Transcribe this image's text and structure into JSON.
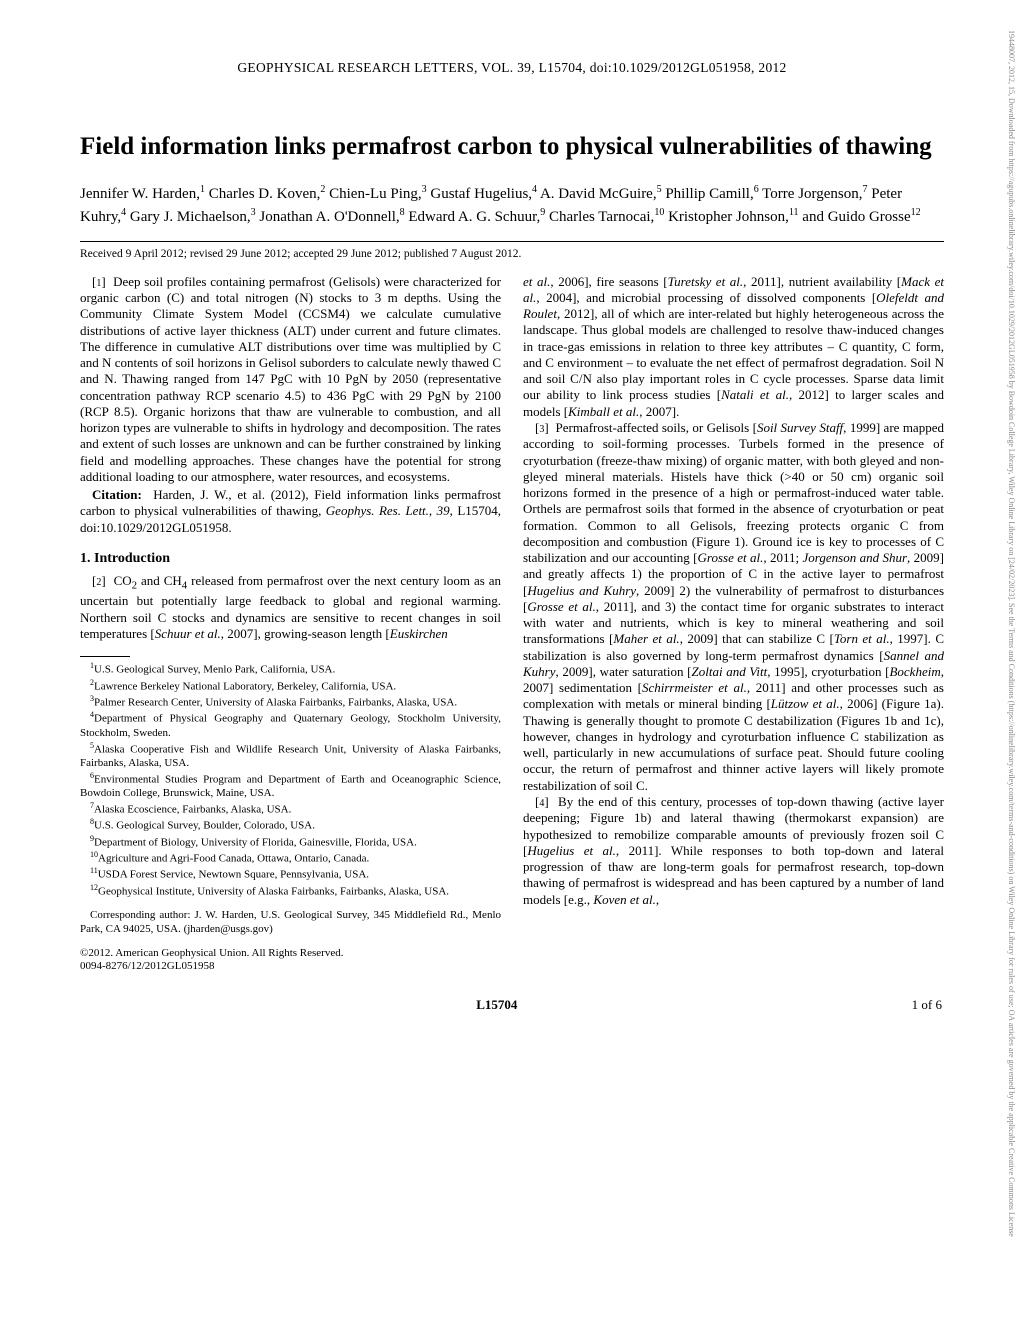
{
  "sidebar_text": "19448007, 2012, 15, Downloaded from https://agupubs.onlinelibrary.wiley.com/doi/10.1029/2012GL051958 by Bowdoin College Library, Wiley Online Library on [24/02/2023]. See the Terms and Conditions (https://onlinelibrary.wiley.com/terms-and-conditions) on Wiley Online Library for rules of use; OA articles are governed by the applicable Creative Commons License",
  "journal_header": "GEOPHYSICAL RESEARCH LETTERS, VOL. 39, L15704, doi:10.1029/2012GL051958, 2012",
  "title": "Field information links permafrost carbon to physical vulnerabilities of thawing",
  "authors_html": "Jennifer W. Harden,<sup>1</sup> Charles D. Koven,<sup>2</sup> Chien-Lu Ping,<sup>3</sup> Gustaf Hugelius,<sup>4</sup> A. David McGuire,<sup>5</sup> Phillip Camill,<sup>6</sup> Torre Jorgenson,<sup>7</sup> Peter Kuhry,<sup>4</sup> Gary J. Michaelson,<sup>3</sup> Jonathan A. O'Donnell,<sup>8</sup> Edward A. G. Schuur,<sup>9</sup> Charles Tarnocai,<sup>10</sup> Kristopher Johnson,<sup>11</sup> and Guido Grosse<sup>12</sup>",
  "dates": "Received 9 April 2012; revised 29 June 2012; accepted 29 June 2012; published 7 August 2012.",
  "abstract": "Deep soil profiles containing permafrost (Gelisols) were characterized for organic carbon (C) and total nitrogen (N) stocks to 3 m depths. Using the Community Climate System Model (CCSM4) we calculate cumulative distributions of active layer thickness (ALT) under current and future climates. The difference in cumulative ALT distributions over time was multiplied by C and N contents of soil horizons in Gelisol suborders to calculate newly thawed C and N. Thawing ranged from 147 PgC with 10 PgN by 2050 (representative concentration pathway RCP scenario 4.5) to 436 PgC with 29 PgN by 2100 (RCP 8.5). Organic horizons that thaw are vulnerable to combustion, and all horizon types are vulnerable to shifts in hydrology and decomposition. The rates and extent of such losses are unknown and can be further constrained by linking field and modelling approaches. These changes have the potential for strong additional loading to our atmosphere, water resources, and ecosystems.",
  "citation_label": "Citation:",
  "citation_text": "Harden, J. W., et al. (2012), Field information links permafrost carbon to physical vulnerabilities of thawing, <em>Geophys. Res. Lett.</em>, <em>39</em>, L15704, doi:10.1029/2012GL051958.",
  "section1_heading": "1.   Introduction",
  "para2": "CO<sub>2</sub> and CH<sub>4</sub> released from permafrost over the next century loom as an uncertain but potentially large feedback to global and regional warming. Northern soil C stocks and dynamics are sensitive to recent changes in soil temperatures [<em>Schuur et al.</em>, 2007], growing-season length [<em>Euskirchen</em>",
  "para2_cont": "<em>et al.</em>, 2006], fire seasons [<em>Turetsky et al.</em>, 2011], nutrient availability [<em>Mack et al.</em>, 2004], and microbial processing of dissolved components [<em>Olefeldt and Roulet</em>, 2012], all of which are inter-related but highly heterogeneous across the landscape. Thus global models are challenged to resolve thaw-induced changes in trace-gas emissions in relation to three key attributes – C quantity, C form, and C environment – to evaluate the net effect of permafrost degradation. Soil N and soil C/N also play important roles in C cycle processes. Sparse data limit our ability to link process studies [<em>Natali et al.</em>, 2012] to larger scales and models [<em>Kimball et al.</em>, 2007].",
  "para3": "Permafrost-affected soils, or Gelisols [<em>Soil Survey Staff</em>, 1999] are mapped according to soil-forming processes. Turbels formed in the presence of cryoturbation (freeze-thaw mixing) of organic matter, with both gleyed and non-gleyed mineral materials. Histels have thick (>40 or 50 cm) organic soil horizons formed in the presence of a high or permafrost-induced water table. Orthels are permafrost soils that formed in the absence of cryoturbation or peat formation. Common to all Gelisols, freezing protects organic C from decomposition and combustion (Figure 1). Ground ice is key to processes of C stabilization and our accounting [<em>Grosse et al.</em>, 2011; <em>Jorgenson and Shur</em>, 2009] and greatly affects 1) the proportion of C in the active layer to permafrost [<em>Hugelius and Kuhry</em>, 2009] 2) the vulnerability of permafrost to disturbances [<em>Grosse et al.</em>, 2011], and 3) the contact time for organic substrates to interact with water and nutrients, which is key to mineral weathering and soil transformations [<em>Maher et al.</em>, 2009] that can stabilize C [<em>Torn et al.</em>, 1997]. C stabilization is also governed by long-term permafrost dynamics [<em>Sannel and Kuhry</em>, 2009], water saturation [<em>Zoltai and Vitt</em>, 1995], cryoturbation [<em>Bockheim</em>, 2007] sedimentation [<em>Schirrmeister et al.</em>, 2011] and other processes such as complexation with metals or mineral binding [<em>Lützow et al.</em>, 2006] (Figure 1a). Thawing is generally thought to promote C destabilization (Figures 1b and 1c), however, changes in hydrology and cyroturbation influence C stabilization as well, particularly in new accumulations of surface peat. Should future cooling occur, the return of permafrost and thinner active layers will likely promote restabilization of soil C.",
  "para4": "By the end of this century, processes of top-down thawing (active layer deepening; Figure 1b) and lateral thawing (thermokarst expansion) are hypothesized to remobilize comparable amounts of previously frozen soil C [<em>Hugelius et al.</em>, 2011]. While responses to both top-down and lateral progression of thaw are long-term goals for permafrost research, top-down thawing of permafrost is widespread and has been captured by a number of land models [e.g., <em>Koven et al.</em>,",
  "affiliations": [
    "<sup>1</sup>U.S. Geological Survey, Menlo Park, California, USA.",
    "<sup>2</sup>Lawrence Berkeley National Laboratory, Berkeley, California, USA.",
    "<sup>3</sup>Palmer Research Center, University of Alaska Fairbanks, Fairbanks, Alaska, USA.",
    "<sup>4</sup>Department of Physical Geography and Quaternary Geology, Stockholm University, Stockholm, Sweden.",
    "<sup>5</sup>Alaska Cooperative Fish and Wildlife Research Unit, University of Alaska Fairbanks, Fairbanks, Alaska, USA.",
    "<sup>6</sup>Environmental Studies Program and Department of Earth and Oceanographic Science, Bowdoin College, Brunswick, Maine, USA.",
    "<sup>7</sup>Alaska Ecoscience, Fairbanks, Alaska, USA.",
    "<sup>8</sup>U.S. Geological Survey, Boulder, Colorado, USA.",
    "<sup>9</sup>Department of Biology, University of Florida, Gainesville, Florida, USA.",
    "<sup>10</sup>Agriculture and Agri-Food Canada, Ottawa, Ontario, Canada.",
    "<sup>11</sup>USDA Forest Service, Newtown Square, Pennsylvania, USA.",
    "<sup>12</sup>Geophysical Institute, University of Alaska Fairbanks, Fairbanks, Alaska, USA."
  ],
  "corresponding": "Corresponding author: J. W. Harden, U.S. Geological Survey, 345 Middlefield Rd., Menlo Park, CA 94025, USA. (jharden@usgs.gov)",
  "copyright_line1": "©2012. American Geophysical Union. All Rights Reserved.",
  "copyright_line2": "0094-8276/12/2012GL051958",
  "footer": {
    "left": "",
    "center": "L15704",
    "right": "1 of 6"
  }
}
